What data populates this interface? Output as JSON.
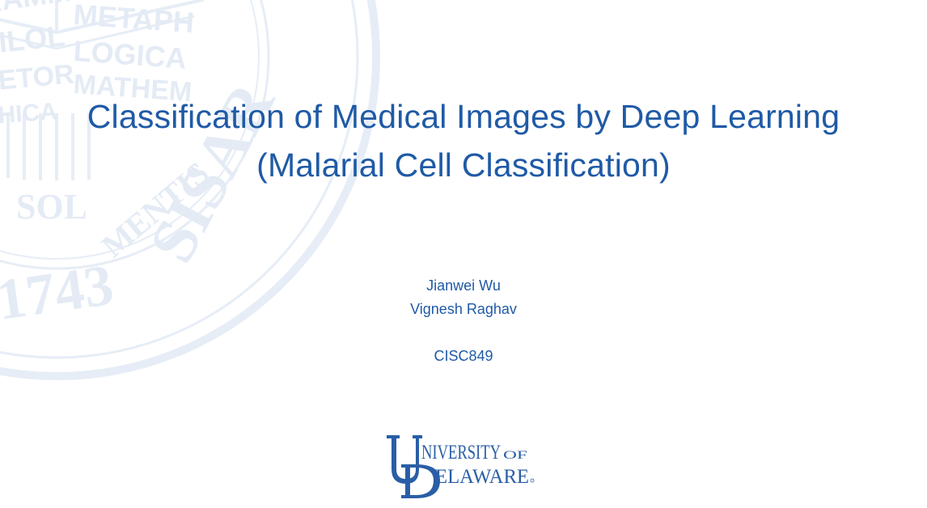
{
  "slide": {
    "title_line_1": "Classification of Medical Images by Deep Learning",
    "title_line_2": "(Malarial Cell Classification)",
    "authors": [
      "Jianwei Wu",
      "Vignesh Raghav"
    ],
    "course": "CISC849"
  },
  "watermark": {
    "icon": "university-seal-icon",
    "words": [
      "GRAMM",
      "METAPH",
      "PHILOL",
      "LOGICA",
      "RHETOR",
      "MATHEM",
      "ETHICA",
      "SOL",
      "MENTIS",
      "1743",
      "SISAR"
    ]
  },
  "logo": {
    "icon": "university-of-delaware-logo",
    "line_1": "NIVERSITY",
    "of": "OF",
    "line_2": "ELAWARE"
  },
  "colors": {
    "title": "#1f5aa6",
    "watermark": "#e4ebf5",
    "logo": "#2a5ea6",
    "background": "#ffffff"
  }
}
